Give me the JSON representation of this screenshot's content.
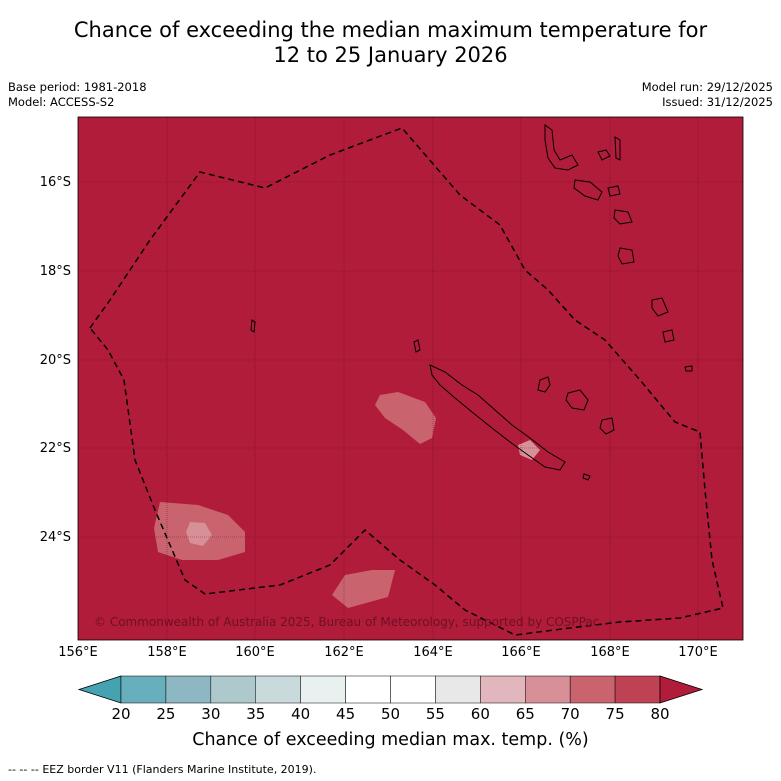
{
  "title": {
    "line1": "Chance of exceeding the median maximum temperature for",
    "line2": "12 to 25 January 2026"
  },
  "info_left": {
    "base_period": "Base period: 1981-2018",
    "model": "Model: ACCESS-S2"
  },
  "info_right": {
    "model_run": "Model run: 29/12/2025",
    "issued": "Issued: 31/12/2025"
  },
  "map": {
    "lat_labels": [
      "16°S",
      "18°S",
      "20°S",
      "22°S",
      "24°S"
    ],
    "lon_labels": [
      "156°E",
      "158°E",
      "160°E",
      "162°E",
      "164°E",
      "166°E",
      "168°E",
      "170°E"
    ],
    "copyright": "© Commonwealth of Australia 2025, Bureau of Meteorology, supported by COSPPac",
    "dominant_category": ">80",
    "colors": {
      "above_80": "#b11c3a",
      "70_75": "#c9646e",
      "65_70": "#d78f98",
      "land_outline": "#000000"
    }
  },
  "colorbar": {
    "ticks": [
      "20",
      "25",
      "30",
      "35",
      "40",
      "45",
      "50",
      "55",
      "60",
      "65",
      "70",
      "75",
      "80"
    ],
    "colors": [
      "#45a2b1",
      "#68afbd",
      "#8db8c3",
      "#adc9cc",
      "#c9dadc",
      "#e9f0f0",
      "#ffffff",
      "#ffffff",
      "#e8e8e8",
      "#e1b7bd",
      "#d78f98",
      "#c9646e",
      "#bf4254",
      "#b11c3a"
    ],
    "label": "Chance of exceeding median max. temp. (%)"
  },
  "legend": {
    "symbol": "--  --  --",
    "text": "EEZ border V11 (Flanders Marine Institute, 2019)."
  }
}
